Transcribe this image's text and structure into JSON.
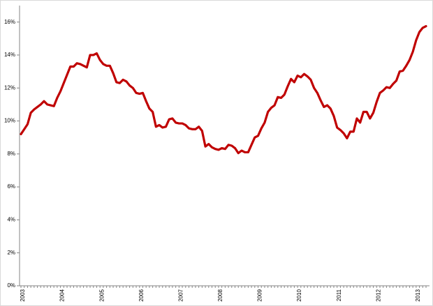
{
  "chart_data": {
    "type": "line",
    "categories": [
      "2003",
      null,
      null,
      null,
      null,
      null,
      null,
      null,
      null,
      null,
      null,
      null,
      "2004",
      null,
      null,
      null,
      null,
      null,
      null,
      null,
      null,
      null,
      null,
      null,
      "2005",
      null,
      null,
      null,
      null,
      null,
      null,
      null,
      null,
      null,
      null,
      null,
      "2006",
      null,
      null,
      null,
      null,
      null,
      null,
      null,
      null,
      null,
      null,
      null,
      "2007",
      null,
      null,
      null,
      null,
      null,
      null,
      null,
      null,
      null,
      null,
      null,
      "2008",
      null,
      null,
      null,
      null,
      null,
      null,
      null,
      null,
      null,
      null,
      null,
      "2009",
      null,
      null,
      null,
      null,
      null,
      null,
      null,
      null,
      null,
      null,
      null,
      "2010",
      null,
      null,
      null,
      null,
      null,
      null,
      null,
      null,
      null,
      null,
      null,
      "2011",
      null,
      null,
      null,
      null,
      null,
      null,
      null,
      null,
      null,
      null,
      null,
      "2012",
      null,
      null,
      null,
      null,
      null,
      null,
      null,
      null,
      null,
      null,
      null,
      "2013",
      null,
      null,
      null
    ],
    "series": [
      {
        "color": "#c00000",
        "values": [
          9.2,
          9.5,
          9.8,
          10.5,
          10.7,
          10.85,
          11.0,
          11.2,
          11.0,
          10.95,
          10.9,
          11.4,
          11.8,
          12.3,
          12.8,
          13.3,
          13.3,
          13.5,
          13.45,
          13.35,
          13.25,
          14.0,
          14.0,
          14.1,
          13.7,
          13.45,
          13.35,
          13.35,
          12.9,
          12.35,
          12.3,
          12.5,
          12.4,
          12.15,
          12.0,
          11.7,
          11.65,
          11.7,
          11.2,
          10.75,
          10.55,
          9.65,
          9.75,
          9.6,
          9.65,
          10.1,
          10.15,
          9.9,
          9.85,
          9.85,
          9.75,
          9.55,
          9.5,
          9.5,
          9.65,
          9.4,
          8.45,
          8.6,
          8.4,
          8.3,
          8.25,
          8.35,
          8.3,
          8.55,
          8.5,
          8.35,
          8.05,
          8.2,
          8.1,
          8.1,
          8.55,
          9.0,
          9.1,
          9.55,
          9.9,
          10.55,
          10.8,
          10.95,
          11.45,
          11.4,
          11.6,
          12.1,
          12.55,
          12.35,
          12.75,
          12.65,
          12.85,
          12.7,
          12.5,
          12.0,
          11.7,
          11.25,
          10.85,
          10.95,
          10.75,
          10.3,
          9.6,
          9.45,
          9.25,
          8.95,
          9.35,
          9.35,
          10.15,
          9.9,
          10.55,
          10.55,
          10.15,
          10.5,
          11.15,
          11.7,
          11.85,
          12.05,
          12.0,
          12.25,
          12.45,
          13.0,
          13.05,
          13.35,
          13.7,
          14.2,
          14.9,
          15.4,
          15.65,
          15.75
        ]
      }
    ],
    "ylim": [
      0,
      17
    ],
    "yticks": [
      {
        "value": 0,
        "label": "0%"
      },
      {
        "value": 2,
        "label": "2%"
      },
      {
        "value": 4,
        "label": "4%"
      },
      {
        "value": 6,
        "label": "6%"
      },
      {
        "value": 8,
        "label": "8%"
      },
      {
        "value": 10,
        "label": "10%"
      },
      {
        "value": 12,
        "label": "12%"
      },
      {
        "value": 14,
        "label": "14%"
      },
      {
        "value": 16,
        "label": "16%"
      }
    ],
    "grid": false
  }
}
